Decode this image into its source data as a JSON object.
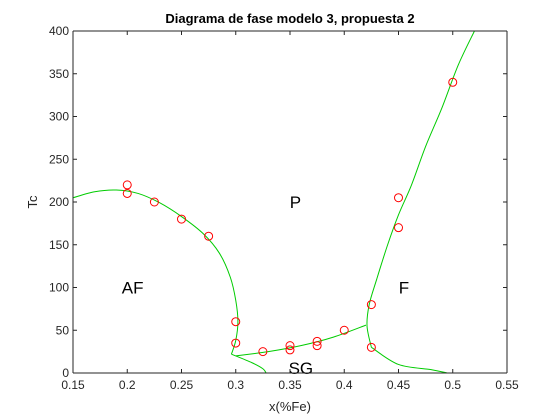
{
  "chart_data": {
    "type": "scatter",
    "title": "Diagrama de fase modelo 3, propuesta 2",
    "xlabel": "x(%Fe)",
    "ylabel": "Tc",
    "xlim": [
      0.15,
      0.55
    ],
    "ylim": [
      0,
      400
    ],
    "x_ticks": [
      "0.15",
      "0.2",
      "0.25",
      "0.3",
      "0.35",
      "0.4",
      "0.45",
      "0.5",
      "0.55"
    ],
    "y_ticks": [
      "0",
      "50",
      "100",
      "150",
      "200",
      "250",
      "300",
      "350",
      "400"
    ],
    "grid": false,
    "marker_color": "#ff0000",
    "curve_color": "#00cc00",
    "points": [
      {
        "x": 0.2,
        "y": 220
      },
      {
        "x": 0.2,
        "y": 210
      },
      {
        "x": 0.225,
        "y": 200
      },
      {
        "x": 0.25,
        "y": 180
      },
      {
        "x": 0.275,
        "y": 160
      },
      {
        "x": 0.3,
        "y": 60
      },
      {
        "x": 0.3,
        "y": 35
      },
      {
        "x": 0.325,
        "y": 25
      },
      {
        "x": 0.35,
        "y": 32
      },
      {
        "x": 0.35,
        "y": 27
      },
      {
        "x": 0.375,
        "y": 37
      },
      {
        "x": 0.375,
        "y": 32
      },
      {
        "x": 0.4,
        "y": 50
      },
      {
        "x": 0.425,
        "y": 80
      },
      {
        "x": 0.425,
        "y": 30
      },
      {
        "x": 0.45,
        "y": 205
      },
      {
        "x": 0.45,
        "y": 170
      },
      {
        "x": 0.5,
        "y": 340
      }
    ],
    "curves": [
      {
        "points": [
          [
            0.15,
            205
          ],
          [
            0.17,
            212
          ],
          [
            0.19,
            214
          ],
          [
            0.21,
            210
          ],
          [
            0.23,
            199
          ],
          [
            0.25,
            183
          ],
          [
            0.27,
            163
          ],
          [
            0.285,
            140
          ],
          [
            0.295,
            112
          ],
          [
            0.3,
            85
          ],
          [
            0.302,
            60
          ],
          [
            0.3,
            38
          ],
          [
            0.296,
            22
          ]
        ]
      },
      {
        "points": [
          [
            0.296,
            22
          ],
          [
            0.315,
            12
          ],
          [
            0.325,
            5
          ],
          [
            0.328,
            0
          ]
        ]
      },
      {
        "points": [
          [
            0.3,
            20
          ],
          [
            0.33,
            25
          ],
          [
            0.36,
            32
          ],
          [
            0.39,
            42
          ],
          [
            0.42,
            56
          ]
        ]
      },
      {
        "points": [
          [
            0.425,
            30
          ],
          [
            0.45,
            10
          ],
          [
            0.48,
            4
          ],
          [
            0.495,
            0
          ]
        ]
      },
      {
        "points": [
          [
            0.425,
            30
          ],
          [
            0.421,
            55
          ],
          [
            0.423,
            80
          ],
          [
            0.43,
            110
          ],
          [
            0.44,
            150
          ],
          [
            0.45,
            185
          ],
          [
            0.462,
            220
          ],
          [
            0.475,
            265
          ],
          [
            0.49,
            310
          ],
          [
            0.505,
            360
          ],
          [
            0.52,
            400
          ]
        ]
      }
    ],
    "annotations": [
      {
        "text": "AF",
        "x": 0.205,
        "y": 100
      },
      {
        "text": "P",
        "x": 0.355,
        "y": 200
      },
      {
        "text": "SG",
        "x": 0.36,
        "y": 6
      },
      {
        "text": "F",
        "x": 0.455,
        "y": 100
      }
    ]
  }
}
